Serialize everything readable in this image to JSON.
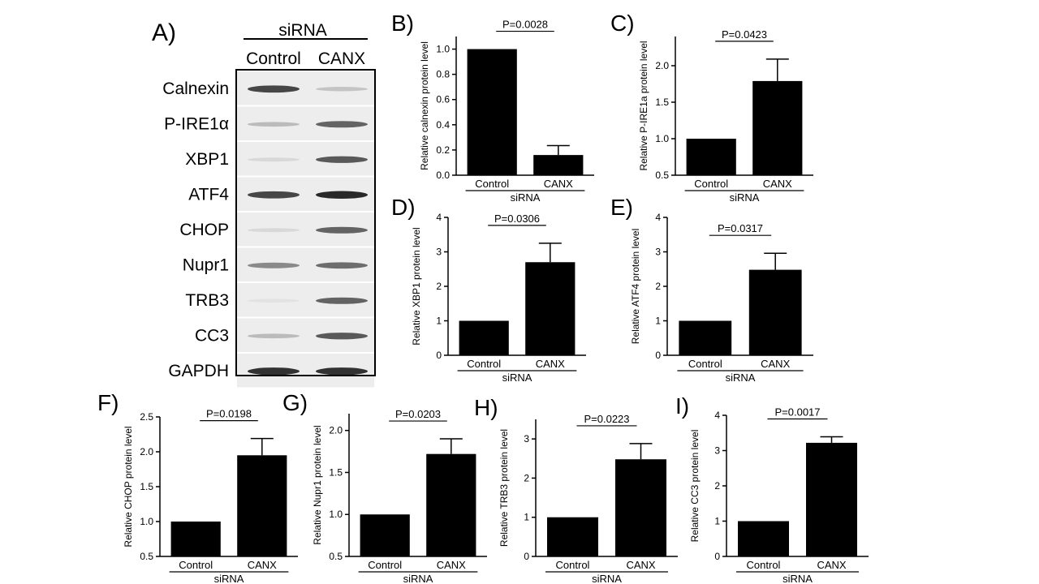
{
  "colors": {
    "bar": "#000000",
    "axis": "#000000",
    "background": "#ffffff"
  },
  "blot": {
    "panel_label": "A)",
    "header": "siRNA",
    "lanes": [
      "Control",
      "CANX"
    ],
    "rows": [
      {
        "label": "Calnexin",
        "intensity": [
          0.85,
          0.2
        ]
      },
      {
        "label": "P-IRE1α",
        "intensity": [
          0.25,
          0.7
        ]
      },
      {
        "label": "XBP1",
        "intensity": [
          0.1,
          0.75
        ]
      },
      {
        "label": "ATF4",
        "intensity": [
          0.85,
          1.0
        ]
      },
      {
        "label": "CHOP",
        "intensity": [
          0.1,
          0.7
        ]
      },
      {
        "label": "Nupr1",
        "intensity": [
          0.5,
          0.65
        ]
      },
      {
        "label": "TRB3",
        "intensity": [
          0.05,
          0.7
        ]
      },
      {
        "label": "CC3",
        "intensity": [
          0.25,
          0.75
        ]
      },
      {
        "label": "GAPDH",
        "intensity": [
          0.95,
          0.95
        ]
      }
    ]
  },
  "chart_data": [
    {
      "panel": "B)",
      "type": "bar",
      "categories": [
        "Control",
        "CANX"
      ],
      "values": [
        1.0,
        0.16
      ],
      "errors": [
        0,
        0.075
      ],
      "ylabel": "Relative calnexin protein level",
      "xlabel": "siRNA",
      "ylim": [
        0,
        1.1
      ],
      "yticks": [
        0.0,
        0.2,
        0.4,
        0.6,
        0.8,
        1.0
      ],
      "tick_labels": [
        "0.0",
        "0.2",
        "0.4",
        "0.6",
        "0.8",
        "1.0"
      ],
      "annotation": "P=0.0028"
    },
    {
      "panel": "C)",
      "type": "bar",
      "categories": [
        "Control",
        "CANX"
      ],
      "values": [
        1.0,
        1.79
      ],
      "errors": [
        0,
        0.3
      ],
      "ylabel": "Relative P-IRE1a protein level",
      "xlabel": "siRNA",
      "ylim": [
        0.5,
        2.4
      ],
      "yticks": [
        0.5,
        1.0,
        1.5,
        2.0
      ],
      "tick_labels": [
        "0.5",
        "1.0",
        "1.5",
        "2.0"
      ],
      "annotation": "P=0.0423"
    },
    {
      "panel": "D)",
      "type": "bar",
      "categories": [
        "Control",
        "CANX"
      ],
      "values": [
        1.0,
        2.7
      ],
      "errors": [
        0,
        0.55
      ],
      "ylabel": "Relative XBP1 protein level",
      "xlabel": "siRNA",
      "ylim": [
        0,
        4
      ],
      "yticks": [
        0,
        1,
        2,
        3,
        4
      ],
      "tick_labels": [
        "0",
        "1",
        "2",
        "3",
        "4"
      ],
      "annotation": "P=0.0306"
    },
    {
      "panel": "E)",
      "type": "bar",
      "categories": [
        "Control",
        "CANX"
      ],
      "values": [
        1.0,
        2.48
      ],
      "errors": [
        0,
        0.48
      ],
      "ylabel": "Relative ATF4 protein level",
      "xlabel": "siRNA",
      "ylim": [
        0,
        4
      ],
      "yticks": [
        0,
        1,
        2,
        3,
        4
      ],
      "tick_labels": [
        "0",
        "1",
        "2",
        "3",
        "4"
      ],
      "annotation": "P=0.0317"
    },
    {
      "panel": "F)",
      "type": "bar",
      "categories": [
        "Control",
        "CANX"
      ],
      "values": [
        1.0,
        1.95
      ],
      "errors": [
        0,
        0.24
      ],
      "ylabel": "Relative CHOP protein level",
      "xlabel": "siRNA",
      "ylim": [
        0.5,
        2.5
      ],
      "yticks": [
        0.5,
        1.0,
        1.5,
        2.0,
        2.5
      ],
      "tick_labels": [
        "0.5",
        "1.0",
        "1.5",
        "2.0",
        "2.5"
      ],
      "annotation": "P=0.0198"
    },
    {
      "panel": "G)",
      "type": "bar",
      "categories": [
        "Control",
        "CANX"
      ],
      "values": [
        1.0,
        1.72
      ],
      "errors": [
        0,
        0.18
      ],
      "ylabel": "Relative Nupr1 protein level",
      "xlabel": "siRNA",
      "ylim": [
        0.5,
        2.2
      ],
      "yticks": [
        0.5,
        1.0,
        1.5,
        2.0
      ],
      "tick_labels": [
        "0.5",
        "1.0",
        "1.5",
        "2.0"
      ],
      "annotation": "P=0.0203"
    },
    {
      "panel": "H)",
      "type": "bar",
      "categories": [
        "Control",
        "CANX"
      ],
      "values": [
        1.0,
        2.48
      ],
      "errors": [
        0,
        0.4
      ],
      "ylabel": "Relative TRB3 protein level",
      "xlabel": "siRNA",
      "ylim": [
        0,
        3.5
      ],
      "yticks": [
        0,
        1,
        2,
        3
      ],
      "tick_labels": [
        "0",
        "1",
        "2",
        "3"
      ],
      "annotation": "P=0.0223"
    },
    {
      "panel": "I)",
      "type": "bar",
      "categories": [
        "Control",
        "CANX"
      ],
      "values": [
        1.0,
        3.22
      ],
      "errors": [
        0,
        0.17
      ],
      "ylabel": "Relative CC3 protein level",
      "xlabel": "siRNA",
      "ylim": [
        0,
        4
      ],
      "yticks": [
        0,
        1,
        2,
        3,
        4
      ],
      "tick_labels": [
        "0",
        "1",
        "2",
        "3",
        "4"
      ],
      "annotation": "P=0.0017"
    }
  ]
}
